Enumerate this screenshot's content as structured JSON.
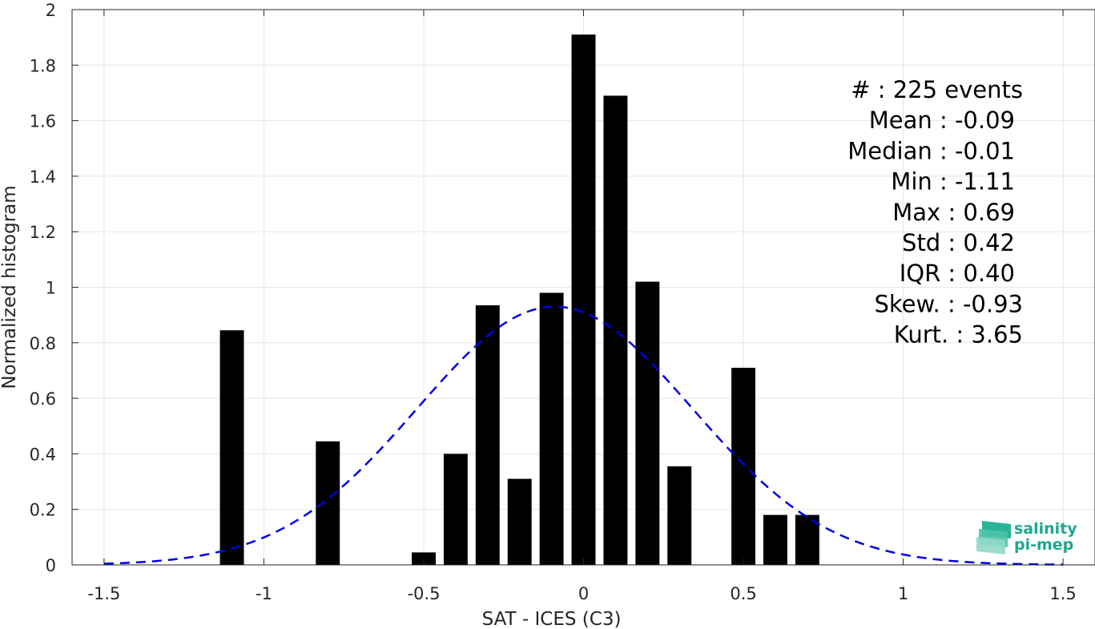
{
  "chart_data": {
    "type": "bar",
    "xlabel": "SAT - ICES (C3)",
    "ylabel": "Normalized histogram",
    "xlim": [
      -1.6,
      1.6
    ],
    "ylim": [
      0,
      2
    ],
    "xticks": [
      -1.5,
      -1,
      -0.5,
      0,
      0.5,
      1,
      1.5
    ],
    "xtick_labels": [
      "-1.5",
      "-1",
      "-0.5",
      "0",
      "0.5",
      "1",
      "1.5"
    ],
    "yticks": [
      0,
      0.2,
      0.4,
      0.6,
      0.8,
      1,
      1.2,
      1.4,
      1.6,
      1.8,
      2
    ],
    "ytick_labels": [
      "0",
      "0.2",
      "0.4",
      "0.6",
      "0.8",
      "1",
      "1.2",
      "1.4",
      "1.6",
      "1.8",
      "2"
    ],
    "grid": true,
    "bar_color": "#000000",
    "bar_width": 0.075,
    "bars": [
      {
        "x": -1.1,
        "value": 0.845
      },
      {
        "x": -0.8,
        "value": 0.445
      },
      {
        "x": -0.5,
        "value": 0.045
      },
      {
        "x": -0.4,
        "value": 0.4
      },
      {
        "x": -0.3,
        "value": 0.935
      },
      {
        "x": -0.2,
        "value": 0.31
      },
      {
        "x": -0.1,
        "value": 0.98
      },
      {
        "x": 0.0,
        "value": 1.91
      },
      {
        "x": 0.1,
        "value": 1.69
      },
      {
        "x": 0.2,
        "value": 1.02
      },
      {
        "x": 0.3,
        "value": 0.355
      },
      {
        "x": 0.5,
        "value": 0.71
      },
      {
        "x": 0.6,
        "value": 0.18
      },
      {
        "x": 0.7,
        "value": 0.18
      }
    ],
    "fit_curve": {
      "style": "dashed",
      "color": "#0000e6",
      "mean": -0.09,
      "std": 0.43,
      "peak": 0.93,
      "x_range": [
        -1.5,
        1.5
      ]
    },
    "stats_lines": [
      "#  : 225 events",
      "Mean : -0.09",
      "Median : -0.01",
      "Min : -1.11",
      "Max : 0.69",
      "Std : 0.42",
      "IQR : 0.40",
      "Skew. : -0.93",
      "Kurt. : 3.65"
    ]
  },
  "logo": {
    "line1": "salinity",
    "line2": "pi-mep",
    "color": "#1aa98f",
    "icon": "wave-layers-icon"
  }
}
